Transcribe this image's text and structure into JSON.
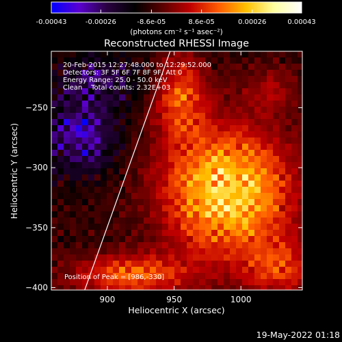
{
  "colorbar": {
    "tick_labels": [
      "-0.00043",
      "-0.00026",
      "-8.6e-05",
      "8.6e-05",
      "0.00026",
      "0.00043"
    ],
    "tick_values": [
      -0.00043,
      -0.00026,
      -8.6e-05,
      8.6e-05,
      0.00026,
      0.00043
    ],
    "range": [
      -0.00043,
      0.00043
    ],
    "unit_label": "(photons cm⁻² s⁻¹ asec⁻²)",
    "colors": [
      "#0000ff",
      "#5a00d0",
      "#2a0040",
      "#000000",
      "#5a0000",
      "#c00000",
      "#ff5a00",
      "#ffc000",
      "#ffffa0",
      "#ffffff"
    ]
  },
  "chart_data": {
    "type": "heatmap",
    "title": "Reconstructed RHESSI Image",
    "xlabel": "Heliocentric X (arcsec)",
    "ylabel": "Heliocentric Y (arcsec)",
    "xlim": [
      858,
      1046
    ],
    "ylim": [
      -402,
      -203
    ],
    "xticks": [
      900,
      950,
      1000
    ],
    "yticks": [
      -250,
      -300,
      -350,
      -400
    ],
    "peak": [
      986,
      -330
    ],
    "limb_line": [
      [
        883,
        -402
      ],
      [
        947,
        -203
      ]
    ],
    "annotations": [
      "20-Feb-2015 12:27:48.000 to 12:29:52.000",
      "Detectors: 3F 5F 6F 7F 8F 9F, Att 0",
      "Energy Range: 25.0 - 50.0 keV",
      "Clean    Total counts: 2.32E+03"
    ],
    "peak_label": "Position of Peak = [986,-330]",
    "sources": [
      {
        "x": 990,
        "y": -320,
        "sx": 35,
        "sy": 38,
        "amp": 0.00043
      },
      {
        "x": 955,
        "y": -240,
        "sx": 14,
        "sy": 26,
        "amp": 0.00024
      },
      {
        "x": 918,
        "y": -390,
        "sx": 32,
        "sy": 13,
        "amp": 0.00026
      },
      {
        "x": 1030,
        "y": -385,
        "sx": 20,
        "sy": 16,
        "amp": 0.0002
      },
      {
        "x": 1022,
        "y": -235,
        "sx": 16,
        "sy": 14,
        "amp": 0.00012
      }
    ],
    "negative_sources": [
      {
        "x": 880,
        "y": -272,
        "sx": 18,
        "sy": 22,
        "amp": -0.00026
      },
      {
        "x": 895,
        "y": -225,
        "sx": 22,
        "sy": 14,
        "amp": -0.00016
      }
    ]
  },
  "timestamp": "19-May-2022 01:18"
}
